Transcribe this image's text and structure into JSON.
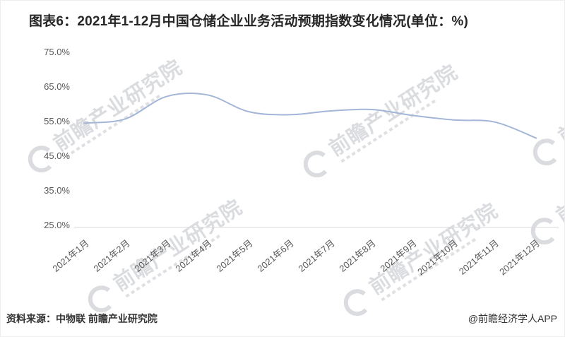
{
  "page": {
    "title": "图表6：2021年1-12月中国仓储企业业务活动预期指数变化情况(单位：%)",
    "source": "资料来源：中物联 前瞻产业研究院",
    "credit": "@前瞻经济学人APP",
    "watermark_text": "前瞻产业研究院"
  },
  "chart_data": {
    "type": "line",
    "title": "2021年1-12月中国仓储企业业务活动预期指数变化情况",
    "unit": "%",
    "categories": [
      "2021年1月",
      "2021年2月",
      "2021年3月",
      "2021年4月",
      "2021年5月",
      "2021年6月",
      "2021年7月",
      "2021年8月",
      "2021年9月",
      "2021年10月",
      "2021年11月",
      "2021年12月"
    ],
    "values": [
      54.7,
      55.9,
      62.3,
      62.8,
      58.0,
      57.1,
      58.2,
      58.6,
      56.9,
      55.6,
      55.0,
      50.4
    ],
    "ylabel": "",
    "xlabel": "",
    "ylim": [
      25,
      75
    ],
    "y_ticks": [
      75,
      65,
      55,
      45,
      35,
      25
    ],
    "y_tick_labels": [
      "75.0%",
      "65.0%",
      "55.0%",
      "45.0%",
      "35.0%",
      "25.0%"
    ],
    "line_color": "#a3b6d7",
    "grid": false,
    "legend": false,
    "smooth": true
  }
}
